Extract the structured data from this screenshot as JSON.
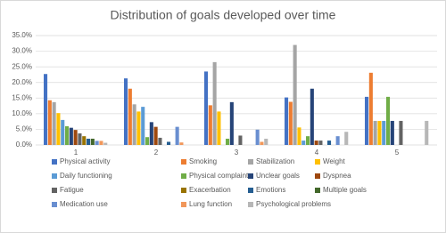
{
  "chart_data": {
    "type": "bar",
    "title": "Distribution of goals developed over time",
    "categories": [
      "1",
      "2",
      "3",
      "4",
      "5"
    ],
    "ylim": [
      0,
      35
    ],
    "yticks": [
      {
        "value": 0,
        "label": "0.0%"
      },
      {
        "value": 5,
        "label": "5.0%"
      },
      {
        "value": 10,
        "label": "10.0%"
      },
      {
        "value": 15,
        "label": "15.0%"
      },
      {
        "value": 20,
        "label": "20.0%"
      },
      {
        "value": 25,
        "label": "25.0%"
      },
      {
        "value": 30,
        "label": "30.0%"
      },
      {
        "value": 35,
        "label": "35.0%"
      }
    ],
    "grid": true,
    "legend": "bottom",
    "series": [
      {
        "name": "Physical activity",
        "color": "#4472c4",
        "values": [
          22.7,
          21.3,
          23.5,
          15.2,
          15.4
        ]
      },
      {
        "name": "Smoking",
        "color": "#ed7d31",
        "values": [
          14.3,
          18.0,
          12.7,
          13.8,
          23.1
        ]
      },
      {
        "name": "Stabilization",
        "color": "#a5a5a5",
        "values": [
          13.7,
          13.0,
          26.5,
          32.0,
          7.7
        ]
      },
      {
        "name": "Weight",
        "color": "#ffc000",
        "values": [
          10.2,
          10.7,
          10.7,
          5.6,
          7.7
        ]
      },
      {
        "name": "Daily functioning",
        "color": "#5b9bd5",
        "values": [
          8.0,
          12.2,
          0,
          1.4,
          7.7
        ]
      },
      {
        "name": "Physical complaints",
        "color": "#70ad47",
        "values": [
          6.0,
          2.5,
          2.0,
          2.8,
          15.4
        ]
      },
      {
        "name": "Unclear goals",
        "color": "#264478",
        "values": [
          5.5,
          7.3,
          13.7,
          18.0,
          7.7
        ]
      },
      {
        "name": "Dyspnea",
        "color": "#9e480e",
        "values": [
          4.8,
          5.8,
          0,
          1.4,
          0
        ]
      },
      {
        "name": "Fatigue",
        "color": "#636363",
        "values": [
          3.7,
          2.3,
          3.0,
          1.4,
          7.7
        ]
      },
      {
        "name": "Exacerbation",
        "color": "#997300",
        "values": [
          2.8,
          0,
          0,
          0,
          0
        ]
      },
      {
        "name": "Emotions",
        "color": "#255e91",
        "values": [
          2.0,
          1.0,
          0,
          1.4,
          0
        ]
      },
      {
        "name": "Multiple goals",
        "color": "#43682b",
        "values": [
          2.0,
          0,
          0,
          0,
          0
        ]
      },
      {
        "name": "Medication use",
        "color": "#698ed0",
        "values": [
          1.3,
          5.8,
          4.9,
          2.8,
          0
        ]
      },
      {
        "name": "Lung function",
        "color": "#f1975a",
        "values": [
          1.3,
          0.8,
          1.0,
          0,
          0
        ]
      },
      {
        "name": "Psychological problems",
        "color": "#b7b7b7",
        "values": [
          0.7,
          0,
          2.0,
          4.2,
          7.7
        ]
      }
    ]
  }
}
